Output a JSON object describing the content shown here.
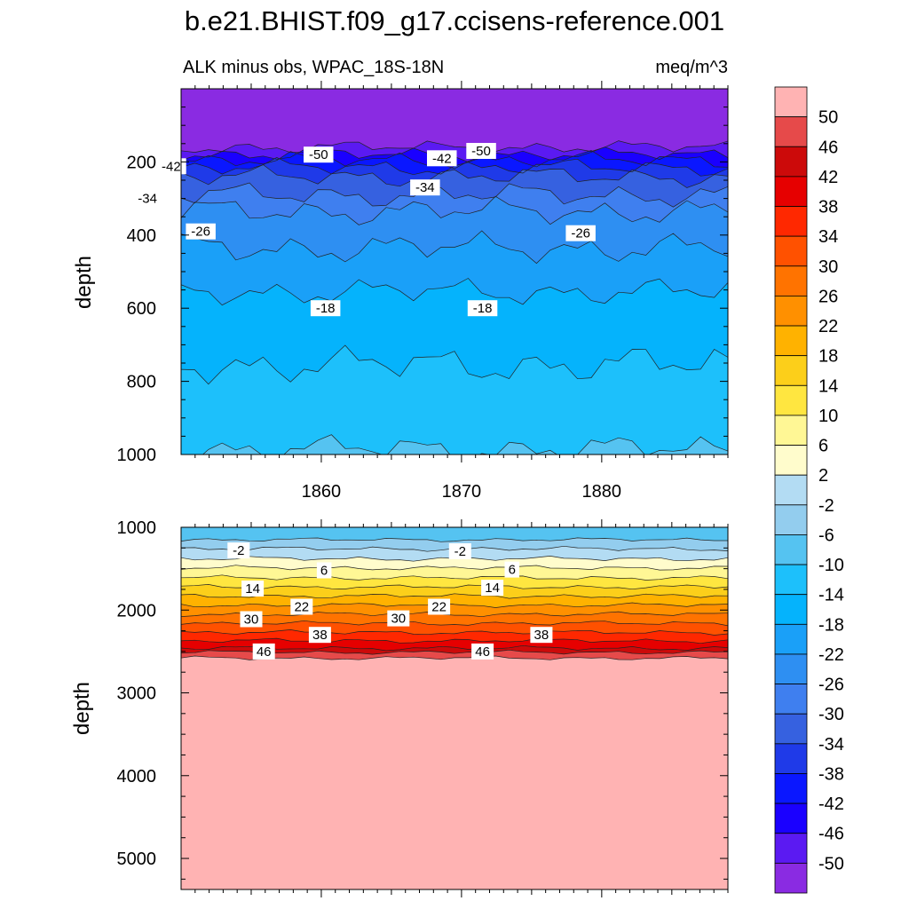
{
  "title": "b.e21.BHIST.f09_g17.ccisens-reference.001",
  "chart_data": {
    "type": "contour",
    "variable_label": "ALK minus obs, WPAC_18S-18N",
    "units": "meq/m^3",
    "colorbar": {
      "levels": [
        -50,
        -46,
        -42,
        -38,
        -34,
        -30,
        -26,
        -22,
        -18,
        -14,
        -10,
        -6,
        -2,
        2,
        6,
        10,
        14,
        18,
        22,
        26,
        30,
        34,
        38,
        42,
        46,
        50
      ],
      "colors": [
        "#8a2be2",
        "#5b1af2",
        "#1a00ff",
        "#0a17ff",
        "#1f3ae8",
        "#3661e0",
        "#3f7fef",
        "#2e8ff2",
        "#1aa0f8",
        "#05b3fc",
        "#1dc0fb",
        "#55c3f1",
        "#93cdee",
        "#b3dcf3",
        "#fffccc",
        "#fff795",
        "#ffe640",
        "#fccf1a",
        "#ffb200",
        "#ff9000",
        "#ff7300",
        "#ff5100",
        "#ff2800",
        "#e60000",
        "#cc0a0a",
        "#e64a4a",
        "#ffb3b3"
      ]
    },
    "upper_panel": {
      "ylabel": "depth",
      "yticks": [
        200,
        400,
        600,
        800,
        1000
      ],
      "ylim": [
        0,
        1000
      ],
      "xlim": [
        1850,
        1889
      ],
      "xticks": [
        1860,
        1870,
        1880
      ],
      "contour_labels": [
        {
          "text": "-50",
          "x": 1859.8,
          "y": 180
        },
        {
          "text": "-50",
          "x": 1871.4,
          "y": 170
        },
        {
          "text": "-42",
          "x": 1849.3,
          "y": 212
        },
        {
          "text": "-42",
          "x": 1868.6,
          "y": 190
        },
        {
          "text": "-34",
          "x": 1847.6,
          "y": 300
        },
        {
          "text": "-34",
          "x": 1867.4,
          "y": 270
        },
        {
          "text": "-26",
          "x": 1851.4,
          "y": 390
        },
        {
          "text": "-26",
          "x": 1878.5,
          "y": 395
        },
        {
          "text": "-18",
          "x": 1860.3,
          "y": 600
        },
        {
          "text": "-18",
          "x": 1871.5,
          "y": 600
        }
      ]
    },
    "lower_panel": {
      "ylabel": "depth",
      "yticks": [
        1000,
        2000,
        3000,
        4000,
        5000
      ],
      "ylim": [
        1000,
        5375
      ],
      "xlim": [
        1850,
        1889
      ],
      "contour_labels": [
        {
          "text": "-2",
          "x": 1854.1,
          "y": 1280
        },
        {
          "text": "-2",
          "x": 1869.9,
          "y": 1290
        },
        {
          "text": "6",
          "x": 1860.2,
          "y": 1520
        },
        {
          "text": "6",
          "x": 1873.6,
          "y": 1510
        },
        {
          "text": "14",
          "x": 1855.1,
          "y": 1740
        },
        {
          "text": "14",
          "x": 1872.2,
          "y": 1730
        },
        {
          "text": "22",
          "x": 1858.6,
          "y": 1960
        },
        {
          "text": "22",
          "x": 1868.4,
          "y": 1960
        },
        {
          "text": "30",
          "x": 1855.0,
          "y": 2110
        },
        {
          "text": "30",
          "x": 1865.5,
          "y": 2100
        },
        {
          "text": "38",
          "x": 1859.9,
          "y": 2300
        },
        {
          "text": "38",
          "x": 1875.7,
          "y": 2300
        },
        {
          "text": "46",
          "x": 1855.9,
          "y": 2500
        },
        {
          "text": "46",
          "x": 1871.5,
          "y": 2500
        }
      ]
    }
  }
}
